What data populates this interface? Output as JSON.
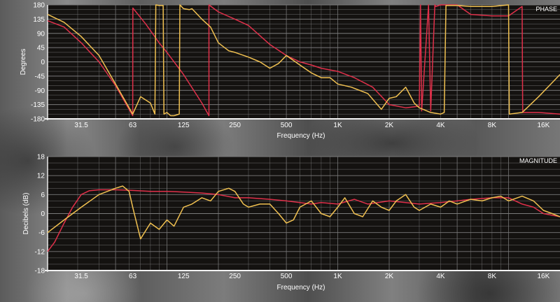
{
  "chart_data": [
    {
      "type": "line",
      "title": "PHASE",
      "xlabel": "Frequency (Hz)",
      "ylabel": "Degrees",
      "xscale": "log",
      "xlim": [
        20,
        20000
      ],
      "ylim": [
        -180,
        180
      ],
      "x_ticks": [
        31.5,
        63,
        125,
        250,
        500,
        1000,
        2000,
        4000,
        8000,
        16000
      ],
      "x_tick_labels": [
        "31.5",
        "63",
        "125",
        "250",
        "500",
        "1K",
        "2K",
        "4K",
        "8K",
        "16K"
      ],
      "y_ticks": [
        180,
        135,
        90,
        45,
        0,
        -45,
        -90,
        -135,
        -180
      ],
      "y_tick_labels": [
        "180",
        "135",
        "90",
        "45",
        "0",
        "-45",
        "-90",
        "-135",
        "-180"
      ],
      "grid": true,
      "series": [
        {
          "color": "#e0304a",
          "x": [
            20,
            25,
            31.5,
            40,
            50,
            63,
            63.1,
            75,
            90,
            100,
            125,
            160,
            176,
            176.1,
            200,
            250,
            300,
            400,
            500,
            600,
            700,
            800,
            1000,
            1250,
            1600,
            2000,
            2500,
            3000,
            3050,
            3100,
            3400,
            3500,
            3700,
            3750,
            4000,
            4200,
            5000,
            6000,
            8000,
            10000,
            12000,
            12100,
            15000,
            20000
          ],
          "y": [
            130,
            110,
            60,
            0,
            -75,
            -170,
            170,
            120,
            60,
            30,
            -40,
            -130,
            -170,
            180,
            158,
            135,
            115,
            55,
            20,
            0,
            -10,
            -20,
            -30,
            -50,
            -80,
            -135,
            -145,
            -140,
            180,
            -155,
            180,
            -155,
            180,
            175,
            180,
            180,
            180,
            150,
            145,
            145,
            175,
            -160,
            -160,
            -165
          ]
        },
        {
          "color": "#f0c050",
          "x": [
            20,
            25,
            31.5,
            40,
            50,
            63,
            70,
            80,
            85,
            86,
            90,
            95,
            96,
            100,
            105,
            110,
            118,
            119,
            125,
            135,
            140,
            160,
            180,
            200,
            230,
            250,
            300,
            350,
            400,
            450,
            500,
            600,
            700,
            800,
            900,
            1000,
            1200,
            1500,
            1800,
            2000,
            2200,
            2500,
            2800,
            3000,
            3500,
            4000,
            4200,
            4300,
            5000,
            6000,
            8000,
            10000,
            10100,
            12000,
            15000,
            20000
          ],
          "y": [
            150,
            125,
            80,
            20,
            -70,
            -165,
            -110,
            -130,
            -165,
            180,
            178,
            178,
            -165,
            -160,
            -170,
            -170,
            -165,
            180,
            168,
            165,
            168,
            135,
            110,
            60,
            35,
            30,
            15,
            0,
            -20,
            -5,
            20,
            -10,
            -35,
            -50,
            -50,
            -70,
            -80,
            -100,
            -150,
            -115,
            -110,
            -80,
            -130,
            -145,
            -160,
            -165,
            -160,
            178,
            178,
            175,
            175,
            180,
            -165,
            -160,
            -110,
            -40
          ]
        }
      ]
    },
    {
      "type": "line",
      "title": "MAGNITUDE",
      "xlabel": "Frequency (Hz)",
      "ylabel": "Decibels (dB)",
      "xscale": "log",
      "xlim": [
        20,
        20000
      ],
      "ylim": [
        -18,
        18
      ],
      "x_ticks": [
        31.5,
        63,
        125,
        250,
        500,
        1000,
        2000,
        4000,
        8000,
        16000
      ],
      "x_tick_labels": [
        "31.5",
        "63",
        "125",
        "250",
        "500",
        "1K",
        "2K",
        "4K",
        "8K",
        "16K"
      ],
      "y_ticks": [
        18,
        12,
        6,
        0,
        -6,
        -12,
        -18
      ],
      "y_tick_labels": [
        "18",
        "12",
        "6",
        "0",
        "-6",
        "-12",
        "-18"
      ],
      "grid": true,
      "series": [
        {
          "color": "#e0304a",
          "x": [
            20,
            22,
            25,
            28,
            31.5,
            35,
            40,
            50,
            63,
            80,
            100,
            125,
            160,
            200,
            250,
            300,
            400,
            500,
            600,
            700,
            800,
            1000,
            1250,
            1500,
            2000,
            2500,
            3000,
            4000,
            5000,
            6000,
            8000,
            10000,
            12000,
            14000,
            16000,
            20000
          ],
          "y": [
            -12,
            -9,
            -3,
            2,
            6,
            7.2,
            7.5,
            7.5,
            7.3,
            7,
            7,
            6.8,
            6.5,
            6,
            5,
            5,
            4.5,
            4,
            3.5,
            3,
            3.5,
            3,
            4.5,
            3,
            4,
            3.5,
            3,
            3.5,
            4,
            4.5,
            5,
            5,
            3,
            2,
            0,
            -1
          ]
        },
        {
          "color": "#f0c050",
          "x": [
            20,
            25,
            31.5,
            40,
            50,
            55,
            60,
            63,
            70,
            80,
            90,
            100,
            110,
            125,
            140,
            160,
            180,
            200,
            230,
            250,
            280,
            300,
            350,
            400,
            450,
            500,
            550,
            600,
            700,
            800,
            900,
            1000,
            1100,
            1250,
            1400,
            1600,
            1800,
            2000,
            2200,
            2500,
            2800,
            3000,
            3500,
            4000,
            4500,
            5000,
            6000,
            7000,
            8000,
            9000,
            10000,
            12000,
            14000,
            16000,
            18000,
            20000
          ],
          "y": [
            -6,
            -2,
            2,
            6,
            8,
            8.7,
            7,
            2,
            -8,
            -3,
            -5,
            -2,
            -4,
            2,
            3,
            5,
            4,
            7,
            8,
            7,
            3,
            2,
            3,
            3,
            0,
            -3,
            -2,
            2,
            4,
            0,
            -1,
            2,
            5,
            0,
            -1,
            4,
            2,
            1,
            4,
            6,
            2,
            1,
            3,
            2,
            4,
            3,
            4.5,
            4,
            5,
            5.5,
            4,
            5.5,
            4,
            1,
            0,
            -1
          ]
        }
      ]
    }
  ]
}
